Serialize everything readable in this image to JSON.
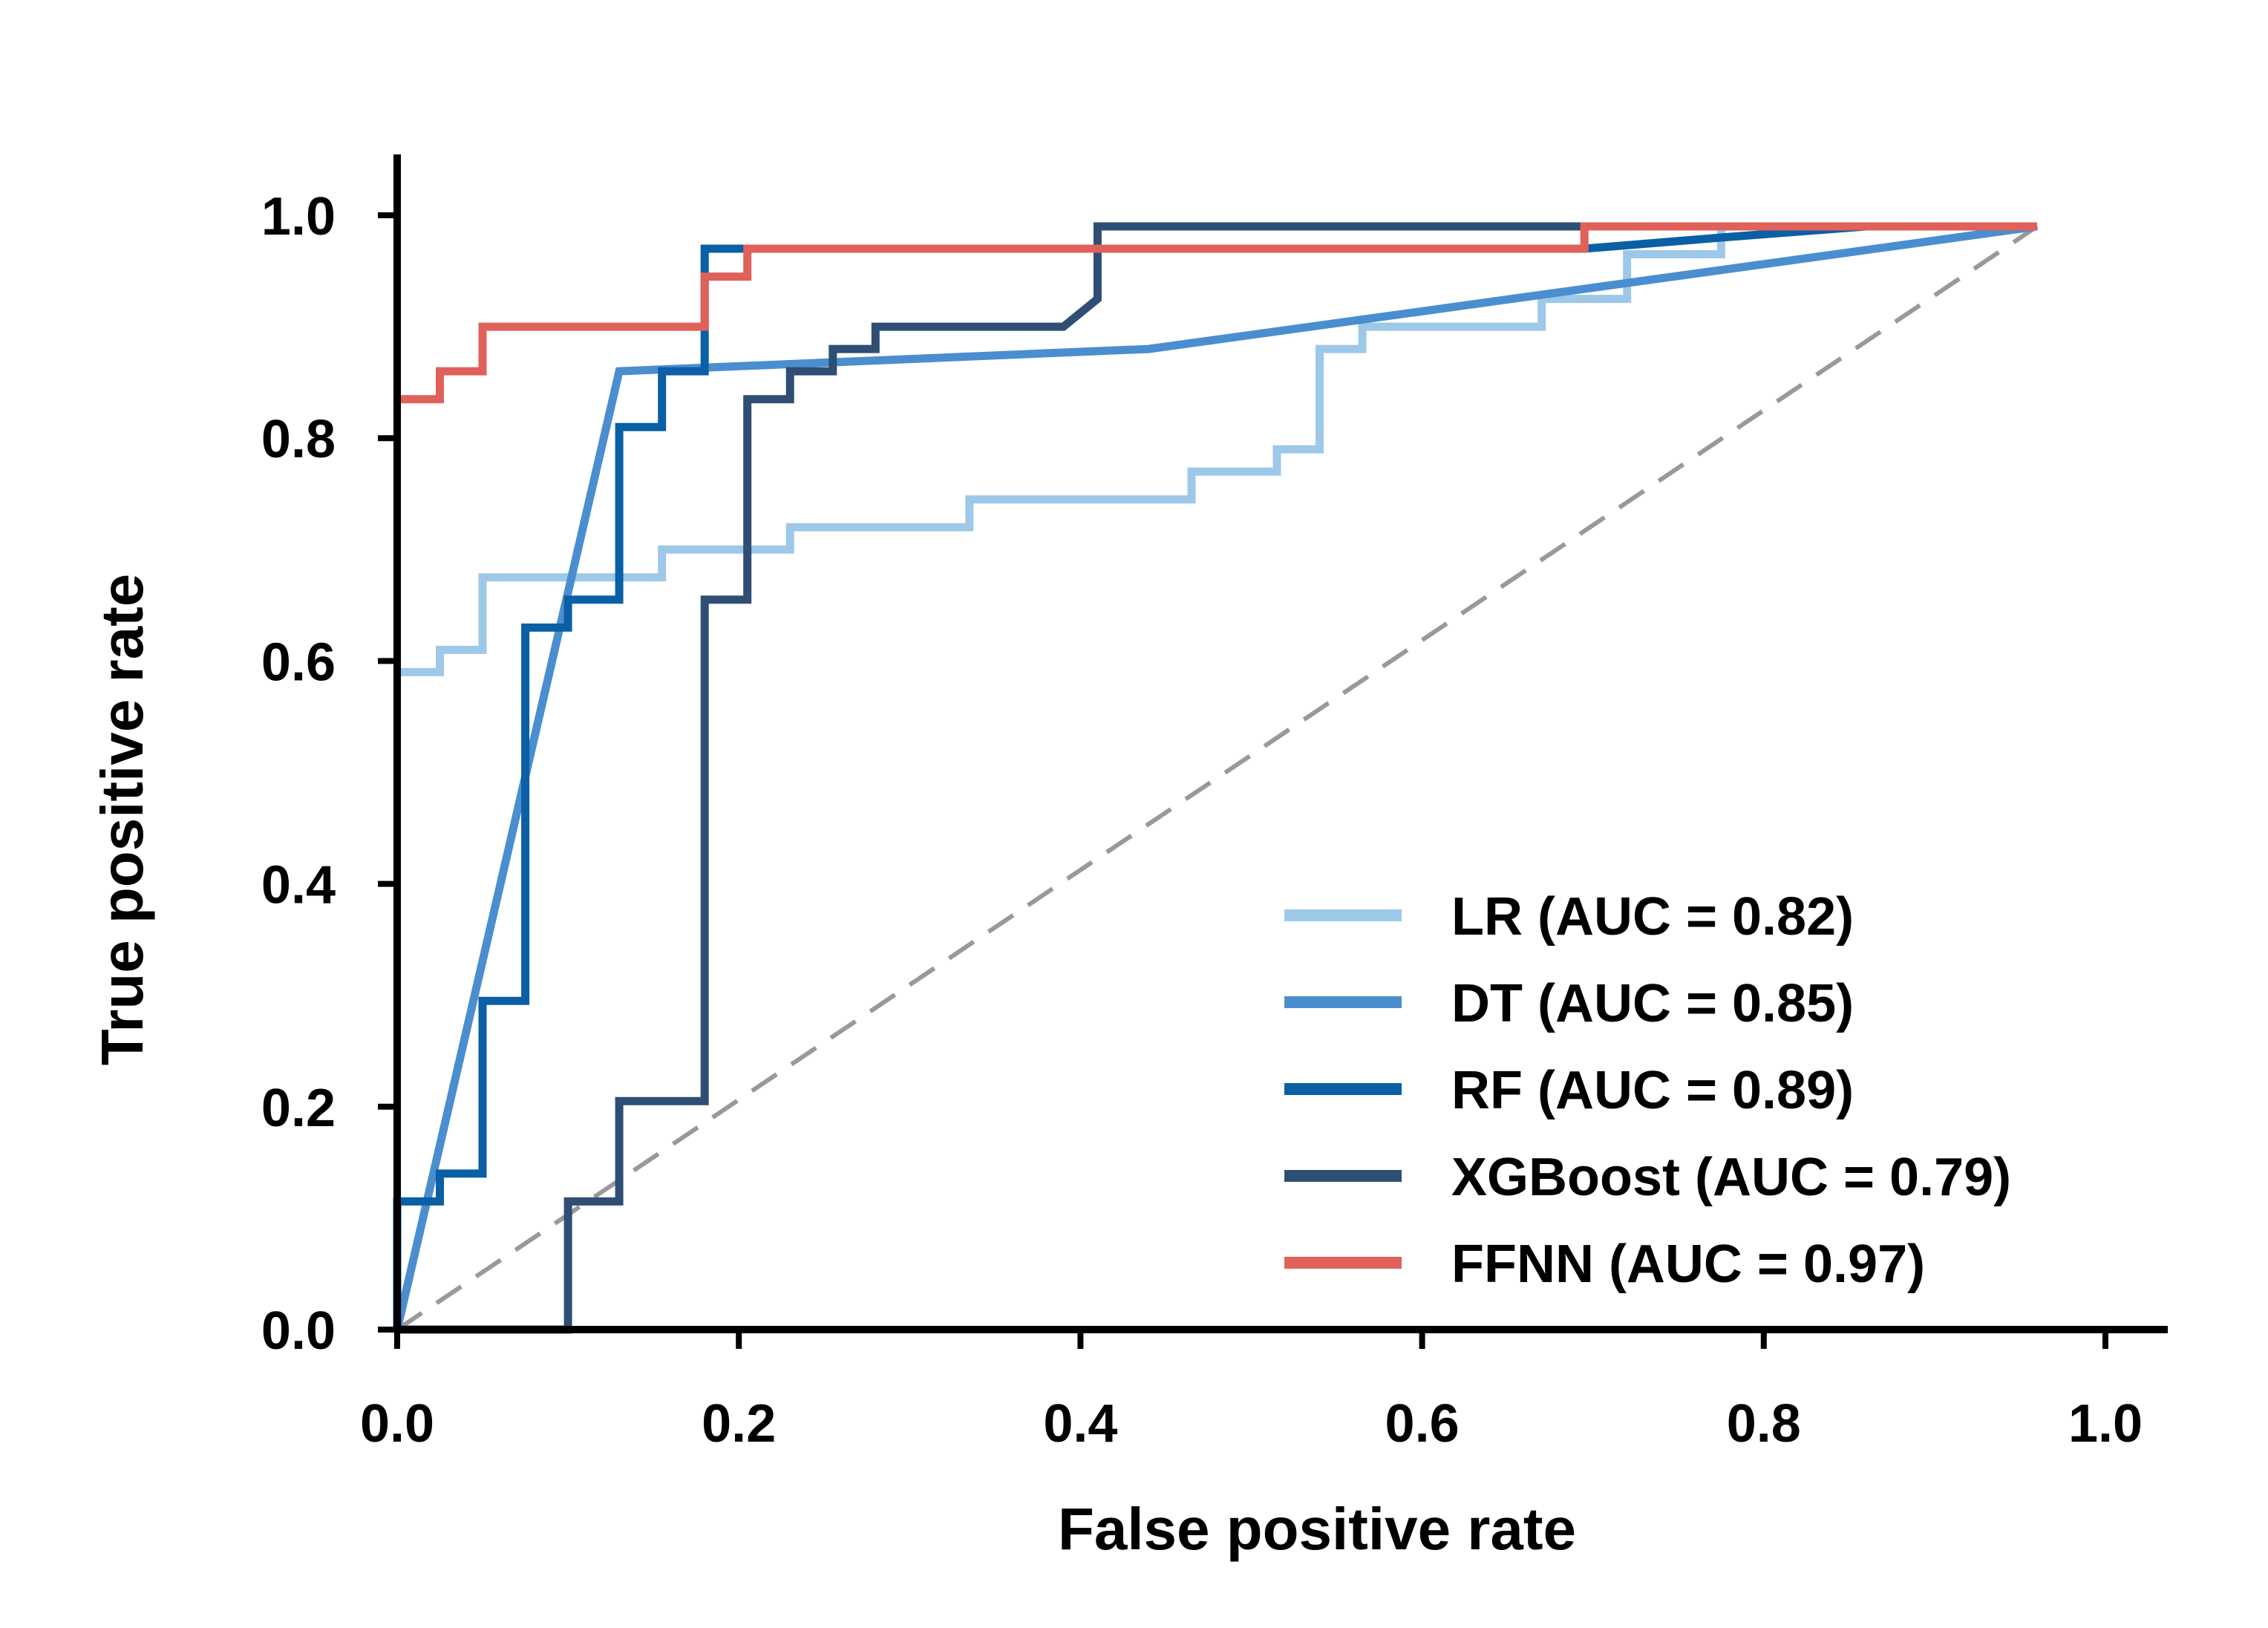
{
  "chart_data": {
    "type": "line",
    "title": "",
    "xlabel": "False positive rate",
    "ylabel": "True positive rate",
    "xlim": [
      0.0,
      1.05
    ],
    "ylim": [
      0.0,
      1.05
    ],
    "xticks": [
      "0.0",
      "0.2",
      "0.4",
      "0.6",
      "0.8",
      "1.0"
    ],
    "yticks": [
      "0.0",
      "0.2",
      "0.4",
      "0.6",
      "0.8",
      "1.0"
    ],
    "grid": false,
    "legend_position": "bottom-right",
    "reference_line": {
      "style": "dashed",
      "color": "#999999",
      "points": [
        [
          0.0,
          0.0
        ],
        [
          0.96,
          0.99
        ]
      ]
    },
    "series": [
      {
        "name": "LR (AUC = 0.82)",
        "color": "#9dc8e8",
        "points": [
          [
            0.0,
            0.59
          ],
          [
            0.025,
            0.59
          ],
          [
            0.025,
            0.61
          ],
          [
            0.05,
            0.61
          ],
          [
            0.05,
            0.675
          ],
          [
            0.155,
            0.675
          ],
          [
            0.155,
            0.7
          ],
          [
            0.23,
            0.7
          ],
          [
            0.23,
            0.72
          ],
          [
            0.335,
            0.72
          ],
          [
            0.335,
            0.745
          ],
          [
            0.465,
            0.745
          ],
          [
            0.465,
            0.77
          ],
          [
            0.515,
            0.77
          ],
          [
            0.515,
            0.79
          ],
          [
            0.54,
            0.79
          ],
          [
            0.54,
            0.88
          ],
          [
            0.565,
            0.88
          ],
          [
            0.565,
            0.9
          ],
          [
            0.67,
            0.9
          ],
          [
            0.67,
            0.925
          ],
          [
            0.72,
            0.925
          ],
          [
            0.72,
            0.965
          ],
          [
            0.775,
            0.965
          ],
          [
            0.775,
            0.99
          ],
          [
            0.96,
            0.99
          ]
        ]
      },
      {
        "name": "DT (AUC = 0.85)",
        "color": "#4a8ecf",
        "points": [
          [
            0.0,
            0.0
          ],
          [
            0.13,
            0.86
          ],
          [
            0.44,
            0.88
          ],
          [
            0.96,
            0.99
          ]
        ]
      },
      {
        "name": "RF (AUC = 0.89)",
        "color": "#0a5fa5",
        "points": [
          [
            0.0,
            0.0
          ],
          [
            0.0,
            0.115
          ],
          [
            0.025,
            0.115
          ],
          [
            0.025,
            0.14
          ],
          [
            0.05,
            0.14
          ],
          [
            0.05,
            0.295
          ],
          [
            0.075,
            0.295
          ],
          [
            0.075,
            0.63
          ],
          [
            0.1,
            0.63
          ],
          [
            0.1,
            0.655
          ],
          [
            0.13,
            0.655
          ],
          [
            0.13,
            0.81
          ],
          [
            0.155,
            0.81
          ],
          [
            0.155,
            0.86
          ],
          [
            0.18,
            0.86
          ],
          [
            0.18,
            0.97
          ],
          [
            0.205,
            0.97
          ],
          [
            0.695,
            0.97
          ],
          [
            0.775,
            0.98
          ],
          [
            0.86,
            0.99
          ],
          [
            0.96,
            0.99
          ]
        ]
      },
      {
        "name": "XGBoost (AUC = 0.79)",
        "color": "#2f4e73",
        "points": [
          [
            0.0,
            0.0
          ],
          [
            0.1,
            0.0
          ],
          [
            0.1,
            0.115
          ],
          [
            0.13,
            0.115
          ],
          [
            0.13,
            0.205
          ],
          [
            0.18,
            0.205
          ],
          [
            0.18,
            0.655
          ],
          [
            0.205,
            0.655
          ],
          [
            0.205,
            0.835
          ],
          [
            0.23,
            0.835
          ],
          [
            0.23,
            0.86
          ],
          [
            0.255,
            0.86
          ],
          [
            0.255,
            0.88
          ],
          [
            0.28,
            0.88
          ],
          [
            0.28,
            0.9
          ],
          [
            0.39,
            0.9
          ],
          [
            0.41,
            0.925
          ],
          [
            0.41,
            0.99
          ],
          [
            0.96,
            0.99
          ]
        ]
      },
      {
        "name": "FFNN (AUC = 0.97)",
        "color": "#e0605a",
        "points": [
          [
            0.0,
            0.835
          ],
          [
            0.025,
            0.835
          ],
          [
            0.025,
            0.86
          ],
          [
            0.05,
            0.86
          ],
          [
            0.05,
            0.9
          ],
          [
            0.18,
            0.9
          ],
          [
            0.18,
            0.945
          ],
          [
            0.205,
            0.945
          ],
          [
            0.205,
            0.97
          ],
          [
            0.695,
            0.97
          ],
          [
            0.695,
            0.99
          ],
          [
            0.96,
            0.99
          ]
        ]
      }
    ]
  }
}
